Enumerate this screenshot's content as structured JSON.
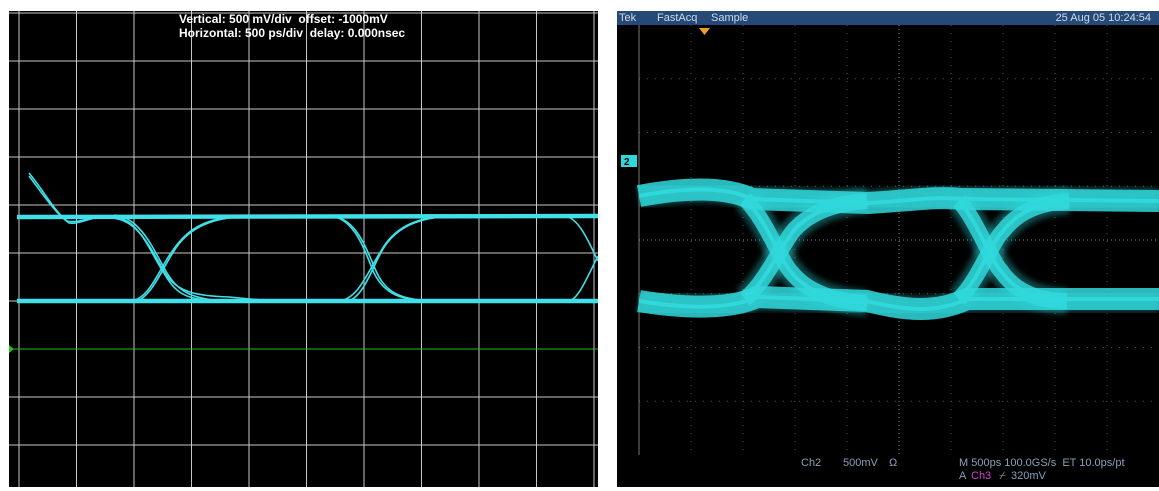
{
  "left_scope": {
    "vertical_text": "Vertical: 500 mV/div  offset: -1000mV",
    "horizontal_text": "Horizontal: 500 ps/div  delay: 0.000nsec",
    "trace_color": "#40e0e8",
    "ground_marker_color": "#20c020"
  },
  "right_scope": {
    "top_bar": {
      "brand": "Tek",
      "mode": "FastAcq",
      "acq": "Sample",
      "timestamp": "25 Aug 05 10:24:54"
    },
    "channel_marker": "2",
    "status": {
      "channel": "Ch2",
      "scale": "500mV",
      "coupling": "Ω",
      "timebase": "M 500ps 100.0GS/s  ET 10.0ps/pt",
      "trigger_prefix": "A",
      "trigger_source": "Ch3",
      "trigger_slope": "⌿",
      "trigger_level": "320mV"
    },
    "trace_color": "#30d8dc",
    "trigger_marker_color": "#f0a020"
  }
}
